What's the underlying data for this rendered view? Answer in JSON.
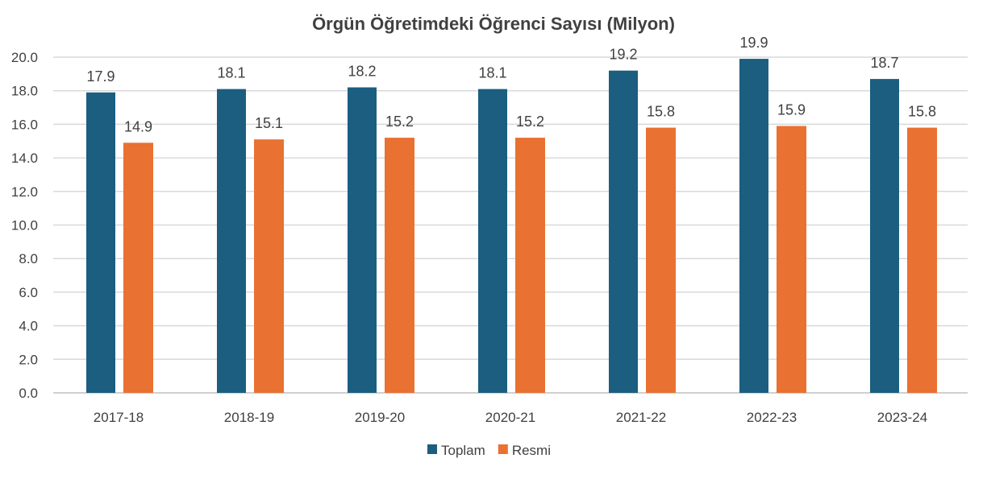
{
  "chart_data": {
    "type": "bar",
    "title": "Örgün Öğretimdeki Öğrenci Sayısı (Milyon)",
    "xlabel": "",
    "ylabel": "",
    "ylim": [
      0,
      20
    ],
    "yticks": [
      "0.0",
      "2.0",
      "4.0",
      "6.0",
      "8.0",
      "10.0",
      "12.0",
      "14.0",
      "16.0",
      "18.0",
      "20.0"
    ],
    "grid": true,
    "legend_position": "bottom",
    "categories": [
      "2017-18",
      "2018-19",
      "2019-20",
      "2020-21",
      "2021-22",
      "2022-23",
      "2023-24"
    ],
    "series": [
      {
        "name": "Toplam",
        "color": "#1b5e80",
        "values": [
          17.9,
          18.1,
          18.2,
          18.1,
          19.2,
          19.9,
          18.7
        ],
        "labels": [
          "17.9",
          "18.1",
          "18.2",
          "18.1",
          "19.2",
          "19.9",
          "18.7"
        ]
      },
      {
        "name": "Resmi",
        "color": "#e97132",
        "values": [
          14.9,
          15.1,
          15.2,
          15.2,
          15.8,
          15.9,
          15.8
        ],
        "labels": [
          "14.9",
          "15.1",
          "15.2",
          "15.2",
          "15.8",
          "15.9",
          "15.8"
        ]
      }
    ]
  }
}
